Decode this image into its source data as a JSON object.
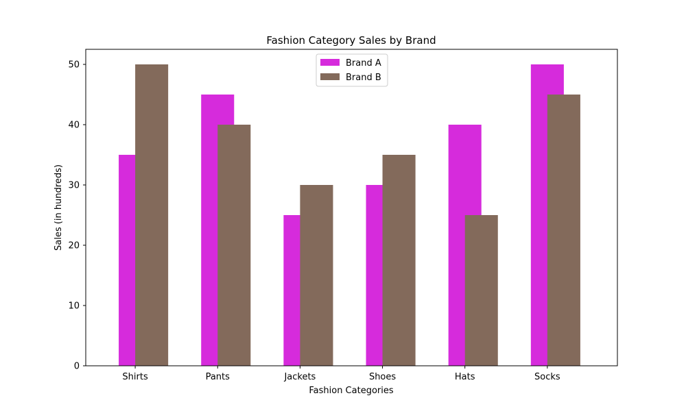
{
  "chart_data": {
    "type": "bar",
    "title": "Fashion Category Sales by Brand",
    "xlabel": "Fashion Categories",
    "ylabel": "Sales (in hundreds)",
    "categories": [
      "Shirts",
      "Pants",
      "Jackets",
      "Shoes",
      "Hats",
      "Socks"
    ],
    "series": [
      {
        "name": "Brand A",
        "values": [
          35,
          45,
          25,
          30,
          40,
          50
        ],
        "color": "#d62bdc"
      },
      {
        "name": "Brand B",
        "values": [
          50,
          40,
          30,
          35,
          25,
          45
        ],
        "color": "#836a5b"
      }
    ],
    "ylim": [
      0,
      52.5
    ],
    "yticks": [
      0,
      10,
      20,
      30,
      40,
      50
    ],
    "grid": false,
    "legend_position": "upper center"
  }
}
